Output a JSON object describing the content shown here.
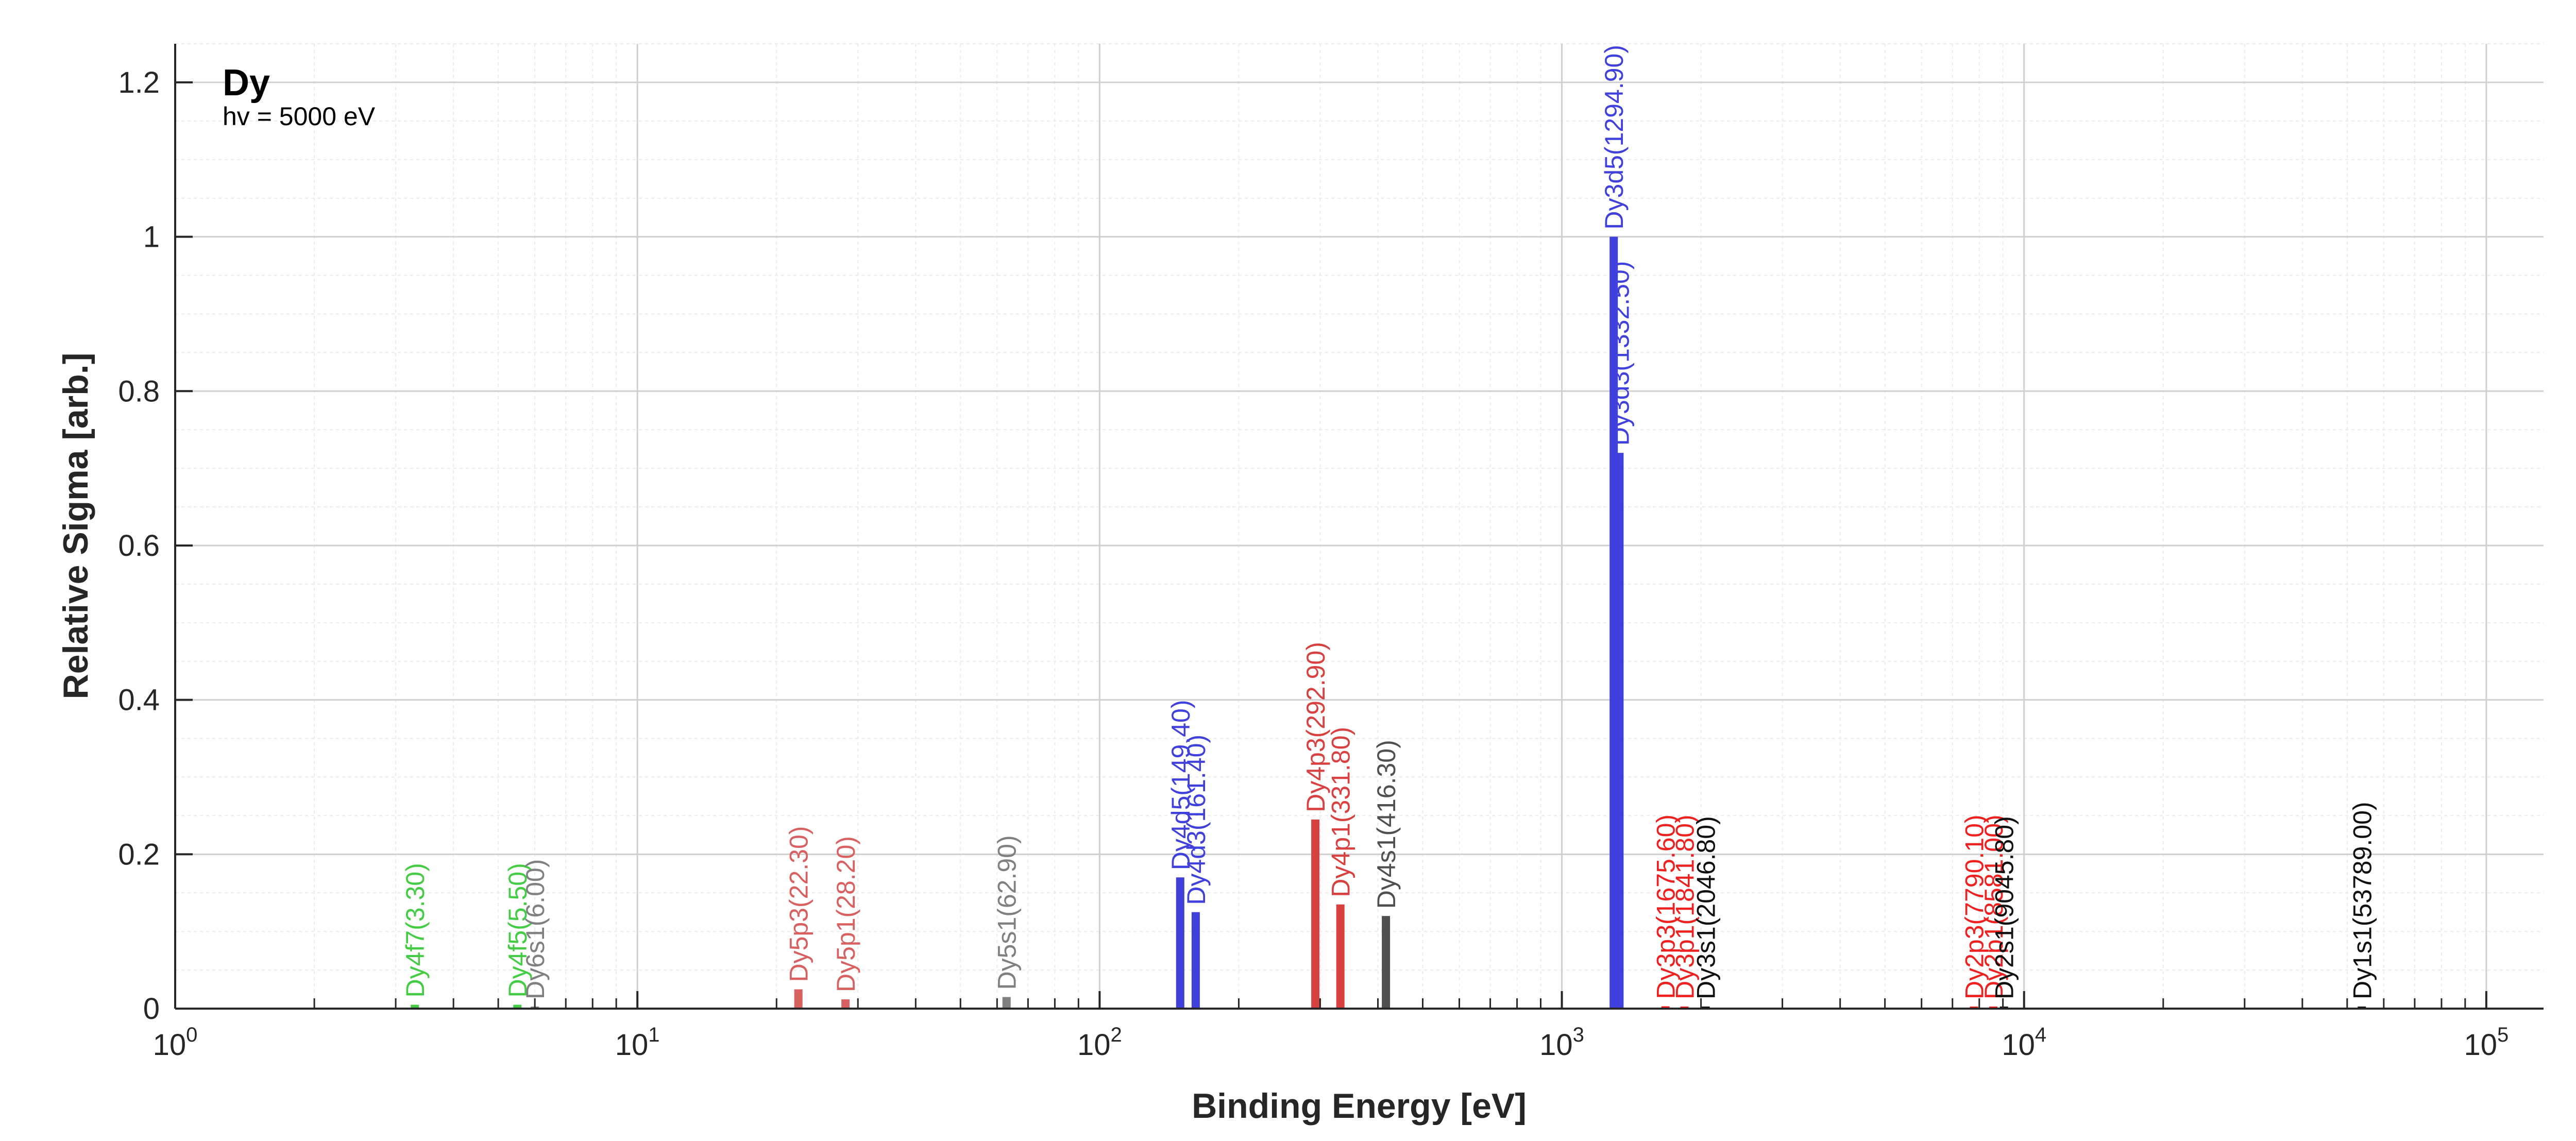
{
  "chart_data": {
    "type": "bar",
    "xscale": "log",
    "xlim": [
      1,
      133000
    ],
    "ylim": [
      0,
      1.25
    ],
    "xlabel": "Binding Energy [eV]",
    "ylabel": "Relative Sigma [arb.]",
    "grid": true,
    "x_ticks": [
      {
        "value": 1,
        "base": "10",
        "exp": "0"
      },
      {
        "value": 10,
        "base": "10",
        "exp": "1"
      },
      {
        "value": 100,
        "base": "10",
        "exp": "2"
      },
      {
        "value": 1000,
        "base": "10",
        "exp": "3"
      },
      {
        "value": 10000,
        "base": "10",
        "exp": "4"
      },
      {
        "value": 100000,
        "base": "10",
        "exp": "5"
      }
    ],
    "y_ticks": [
      {
        "value": 0,
        "label": "0"
      },
      {
        "value": 0.2,
        "label": "0.2"
      },
      {
        "value": 0.4,
        "label": "0.4"
      },
      {
        "value": 0.6,
        "label": "0.6"
      },
      {
        "value": 0.8,
        "label": "0.8"
      },
      {
        "value": 1.0,
        "label": "1"
      },
      {
        "value": 1.2,
        "label": "1.2"
      }
    ],
    "annotations": {
      "element": "Dy",
      "photon_energy": "hv = 5000 eV"
    },
    "peaks": [
      {
        "label": "Dy4f7(3.30)",
        "energy": 3.3,
        "sigma": 0.005,
        "color": "#44cc44"
      },
      {
        "label": "Dy4f5(5.50)",
        "energy": 5.5,
        "sigma": 0.005,
        "color": "#44cc44"
      },
      {
        "label": "Dy6s1(6.00)",
        "energy": 6.0,
        "sigma": 0.002,
        "color": "#808080"
      },
      {
        "label": "Dy5p3(22.30)",
        "energy": 22.3,
        "sigma": 0.025,
        "color": "#d96060"
      },
      {
        "label": "Dy5p1(28.20)",
        "energy": 28.2,
        "sigma": 0.012,
        "color": "#d96060"
      },
      {
        "label": "Dy5s1(62.90)",
        "energy": 62.9,
        "sigma": 0.015,
        "color": "#808080"
      },
      {
        "label": "Dy4d5(149.40)",
        "energy": 149.4,
        "sigma": 0.17,
        "color": "#4040dd"
      },
      {
        "label": "Dy4d3(161.40)",
        "energy": 161.4,
        "sigma": 0.125,
        "color": "#4040dd"
      },
      {
        "label": "Dy4p3(292.90)",
        "energy": 292.9,
        "sigma": 0.245,
        "color": "#d94040"
      },
      {
        "label": "Dy4p1(331.80)",
        "energy": 331.8,
        "sigma": 0.135,
        "color": "#d94040"
      },
      {
        "label": "Dy4s1(416.30)",
        "energy": 416.3,
        "sigma": 0.12,
        "color": "#505050"
      },
      {
        "label": "Dy3d5(1294.90)",
        "energy": 1294.9,
        "sigma": 1.0,
        "color": "#4040dd"
      },
      {
        "label": "Dy3d3(1332.50)",
        "energy": 1332.5,
        "sigma": 0.72,
        "color": "#4040dd"
      },
      {
        "label": "Dy3p3(1675.60)",
        "energy": 1675.6,
        "sigma": 0.003,
        "color": "#ee2020"
      },
      {
        "label": "Dy3p1(1841.80)",
        "energy": 1841.8,
        "sigma": 0.002,
        "color": "#ee2020"
      },
      {
        "label": "Dy3s1(2046.80)",
        "energy": 2046.8,
        "sigma": 0.002,
        "color": "#101010"
      },
      {
        "label": "Dy2p3(7790.10)",
        "energy": 7790.1,
        "sigma": 0.002,
        "color": "#ee2020"
      },
      {
        "label": "Dy2p1(8581.00)",
        "energy": 8581.0,
        "sigma": 0.002,
        "color": "#ee2020"
      },
      {
        "label": "Dy2s1(9045.80)",
        "energy": 9045.8,
        "sigma": 0.002,
        "color": "#101010"
      },
      {
        "label": "Dy1s1(53789.00)",
        "energy": 53789.0,
        "sigma": 0.002,
        "color": "#101010"
      }
    ]
  }
}
